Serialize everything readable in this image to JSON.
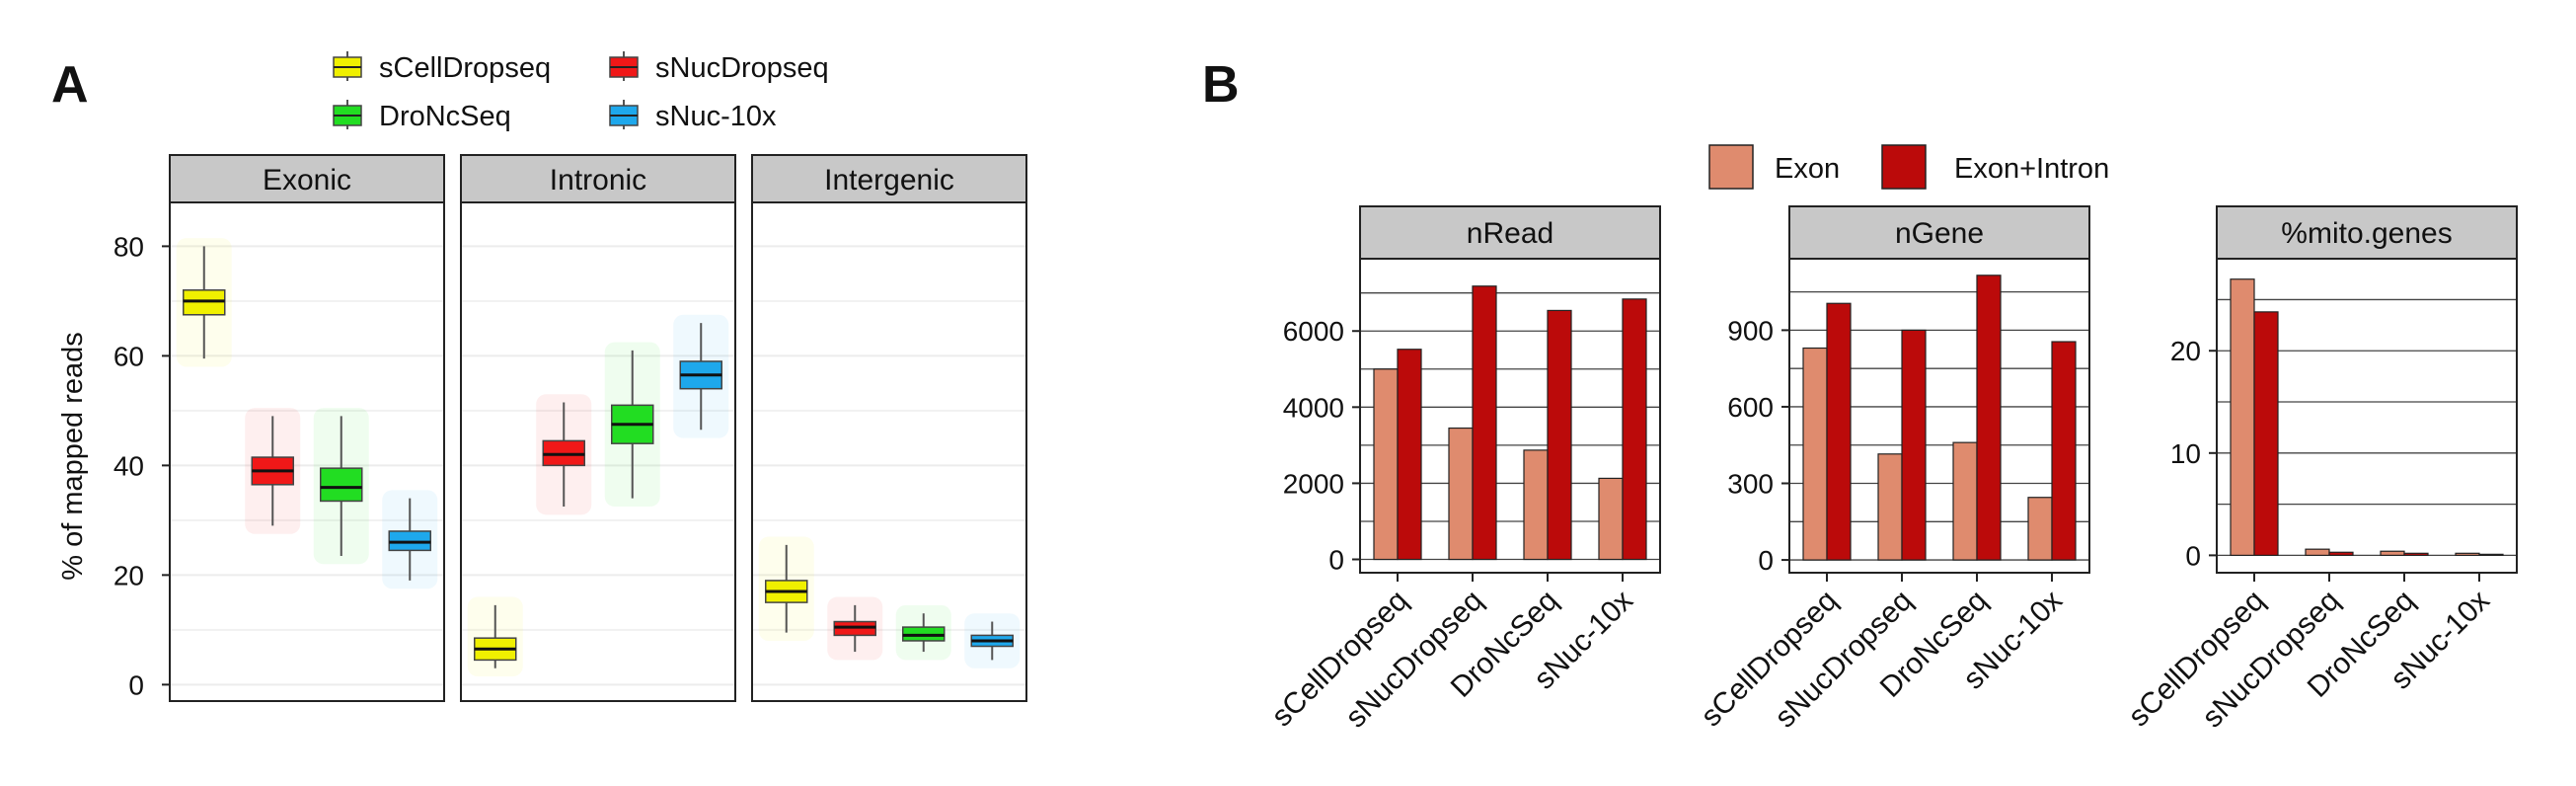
{
  "panels": {
    "A": {
      "letter": "A",
      "legend": [
        {
          "label": "sCellDropseq",
          "color": "#f0f000"
        },
        {
          "label": "sNucDropseq",
          "color": "#f01818"
        },
        {
          "label": "DroNcSeq",
          "color": "#22dd22"
        },
        {
          "label": "sNuc-10x",
          "color": "#1ea8ec"
        }
      ]
    },
    "B": {
      "letter": "B",
      "legend": [
        {
          "label": "Exon",
          "color": "#df8b6e"
        },
        {
          "label": "Exon+Intron",
          "color": "#bb0a0a"
        }
      ]
    }
  },
  "chart_data": [
    {
      "type": "box",
      "ylabel": "% of mapped reads",
      "ylim": [
        -3,
        88
      ],
      "yticks": [
        0,
        20,
        40,
        60,
        80
      ],
      "facets": [
        "Exonic",
        "Intronic",
        "Intergenic"
      ],
      "groups": [
        "sCellDropseq",
        "sNucDropseq",
        "DroNcSeq",
        "sNuc-10x"
      ],
      "boxes": {
        "Exonic": [
          {
            "group": "sCellDropseq",
            "min": 59.5,
            "q1": 67.5,
            "median": 70,
            "q3": 72,
            "max": 80
          },
          {
            "group": "sNucDropseq",
            "min": 29,
            "q1": 36.5,
            "median": 39,
            "q3": 41.5,
            "max": 49
          },
          {
            "group": "DroNcSeq",
            "min": 23.5,
            "q1": 33.5,
            "median": 36,
            "q3": 39.5,
            "max": 49
          },
          {
            "group": "sNuc-10x",
            "min": 19,
            "q1": 24.5,
            "median": 26,
            "q3": 28,
            "max": 34
          }
        ],
        "Intronic": [
          {
            "group": "sCellDropseq",
            "min": 3,
            "q1": 4.5,
            "median": 6.5,
            "q3": 8.5,
            "max": 14.5
          },
          {
            "group": "sNucDropseq",
            "min": 32.5,
            "q1": 40,
            "median": 42,
            "q3": 44.5,
            "max": 51.5
          },
          {
            "group": "DroNcSeq",
            "min": 34,
            "q1": 44,
            "median": 47.5,
            "q3": 51,
            "max": 61
          },
          {
            "group": "sNuc-10x",
            "min": 46.5,
            "q1": 54,
            "median": 56.5,
            "q3": 59,
            "max": 66
          }
        ],
        "Intergenic": [
          {
            "group": "sCellDropseq",
            "min": 9.5,
            "q1": 15,
            "median": 17,
            "q3": 19,
            "max": 25.5
          },
          {
            "group": "sNucDropseq",
            "min": 6,
            "q1": 9,
            "median": 10.5,
            "q3": 11.5,
            "max": 14.5
          },
          {
            "group": "DroNcSeq",
            "min": 6,
            "q1": 8,
            "median": 9,
            "q3": 10.5,
            "max": 13
          },
          {
            "group": "sNuc-10x",
            "min": 4.5,
            "q1": 7,
            "median": 8,
            "q3": 9,
            "max": 11.5
          }
        ]
      }
    },
    {
      "type": "bar",
      "title": "nRead",
      "categories": [
        "sCellDropseq",
        "sNucDropseq",
        "DroNcSeq",
        "sNuc-10x"
      ],
      "series": [
        {
          "name": "Exon",
          "values": [
            5000,
            3450,
            2870,
            2130
          ]
        },
        {
          "name": "Exon+Intron",
          "values": [
            5520,
            7180,
            6540,
            6840
          ]
        }
      ],
      "ylim": [
        -350,
        7900
      ],
      "yticks": [
        0,
        2000,
        4000,
        6000
      ]
    },
    {
      "type": "bar",
      "title": "nGene",
      "categories": [
        "sCellDropseq",
        "sNucDropseq",
        "DroNcSeq",
        "sNuc-10x"
      ],
      "series": [
        {
          "name": "Exon",
          "values": [
            830,
            415,
            460,
            245
          ]
        },
        {
          "name": "Exon+Intron",
          "values": [
            1005,
            900,
            1115,
            855
          ]
        }
      ],
      "ylim": [
        -50,
        1180
      ],
      "yticks": [
        0,
        300,
        600,
        900
      ]
    },
    {
      "type": "bar",
      "title": "%mito.genes",
      "categories": [
        "sCellDropseq",
        "sNucDropseq",
        "DroNcSeq",
        "sNuc-10x"
      ],
      "series": [
        {
          "name": "Exon",
          "values": [
            27,
            0.6,
            0.4,
            0.2
          ]
        },
        {
          "name": "Exon+Intron",
          "values": [
            23.8,
            0.3,
            0.2,
            0.1
          ]
        }
      ],
      "ylim": [
        -1.7,
        29
      ],
      "yticks": [
        0,
        10,
        20
      ]
    }
  ]
}
